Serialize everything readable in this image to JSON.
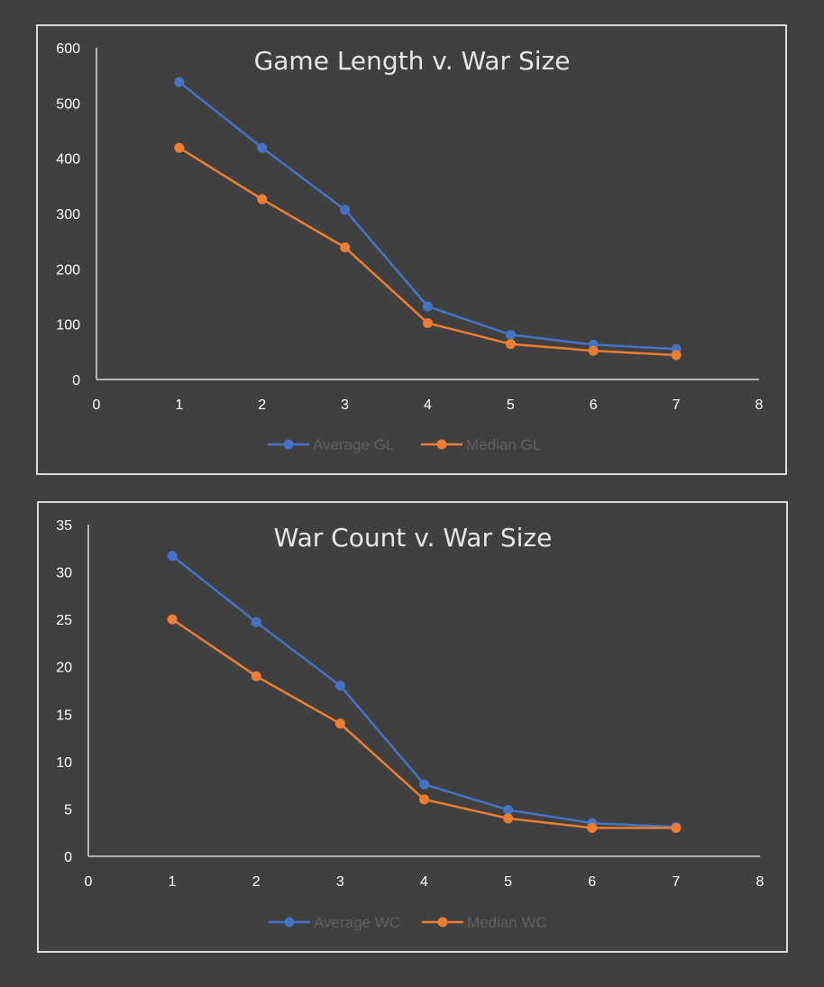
{
  "chart_data": [
    {
      "type": "line",
      "title": "Game Length v. War Size",
      "xlabel": "",
      "ylabel": "",
      "xlim": [
        0,
        8
      ],
      "ylim": [
        0,
        600
      ],
      "xticks": [
        "0",
        "1",
        "2",
        "3",
        "4",
        "5",
        "6",
        "7",
        "8"
      ],
      "yticks": [
        "0",
        "100",
        "200",
        "300",
        "400",
        "500",
        "600"
      ],
      "x": [
        1,
        2,
        3,
        4,
        5,
        6,
        7
      ],
      "grid": false,
      "legend_position": "bottom",
      "series": [
        {
          "name": "Average GL",
          "color": "#4472c4",
          "values": [
            538,
            419,
            307,
            132,
            81,
            63,
            55
          ]
        },
        {
          "name": "Median GL",
          "color": "#ed7d31",
          "values": [
            419,
            326,
            239,
            102,
            64,
            52,
            44
          ]
        }
      ]
    },
    {
      "type": "line",
      "title": "War Count v. War Size",
      "xlabel": "",
      "ylabel": "",
      "xlim": [
        0,
        8
      ],
      "ylim": [
        0,
        35
      ],
      "xticks": [
        "0",
        "1",
        "2",
        "3",
        "4",
        "5",
        "6",
        "7",
        "8"
      ],
      "yticks": [
        "0",
        "5",
        "10",
        "15",
        "20",
        "25",
        "30",
        "35"
      ],
      "x": [
        1,
        2,
        3,
        4,
        5,
        6,
        7
      ],
      "grid": false,
      "legend_position": "bottom",
      "series": [
        {
          "name": "Average WC",
          "color": "#4472c4",
          "values": [
            31.7,
            24.7,
            18.0,
            7.6,
            4.9,
            3.5,
            3.1
          ]
        },
        {
          "name": "Median WC",
          "color": "#ed7d31",
          "values": [
            25,
            19,
            14,
            6,
            4,
            3,
            3
          ]
        }
      ]
    }
  ]
}
